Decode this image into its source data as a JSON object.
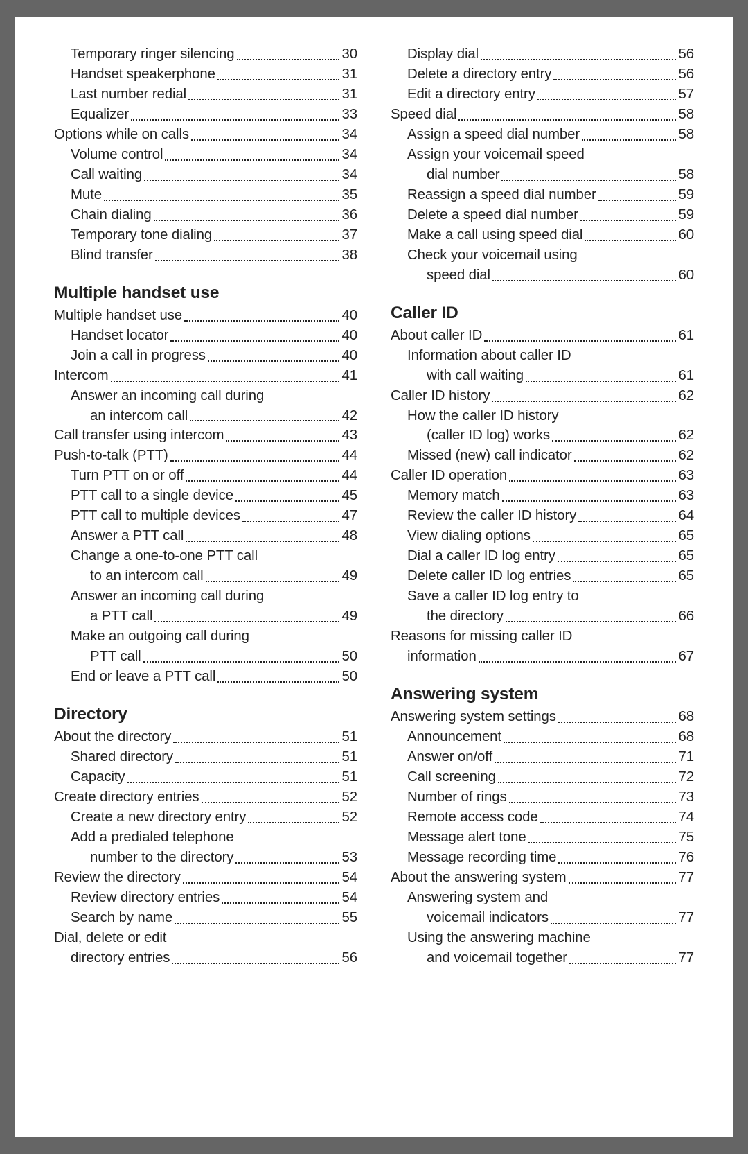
{
  "left_column": [
    {
      "type": "item",
      "level": 1,
      "label": "Temporary ringer silencing",
      "page": "30"
    },
    {
      "type": "item",
      "level": 1,
      "label": "Handset speakerphone",
      "page": "31"
    },
    {
      "type": "item",
      "level": 1,
      "label": "Last number redial",
      "page": "31"
    },
    {
      "type": "item",
      "level": 1,
      "label": "Equalizer",
      "page": "33"
    },
    {
      "type": "item",
      "level": 0,
      "label": "Options while on calls",
      "page": "34"
    },
    {
      "type": "item",
      "level": 1,
      "label": "Volume control",
      "page": "34"
    },
    {
      "type": "item",
      "level": 1,
      "label": "Call waiting",
      "page": "34"
    },
    {
      "type": "item",
      "level": 1,
      "label": "Mute",
      "page": "35"
    },
    {
      "type": "item",
      "level": 1,
      "label": "Chain dialing",
      "page": "36"
    },
    {
      "type": "item",
      "level": 1,
      "label": "Temporary tone dialing",
      "page": "37"
    },
    {
      "type": "item",
      "level": 1,
      "label": "Blind transfer",
      "page": "38"
    },
    {
      "type": "heading",
      "label": "Multiple handset use"
    },
    {
      "type": "item",
      "level": 0,
      "label": "Multiple handset use",
      "page": "40"
    },
    {
      "type": "item",
      "level": 1,
      "label": "Handset locator",
      "page": "40"
    },
    {
      "type": "item",
      "level": 1,
      "label": "Join a call in progress",
      "page": "40"
    },
    {
      "type": "item",
      "level": 0,
      "label": "Intercom",
      "page": "41"
    },
    {
      "type": "text",
      "level": 1,
      "label": "Answer an incoming call during"
    },
    {
      "type": "cont",
      "label": "an intercom call",
      "page": "42"
    },
    {
      "type": "item",
      "level": 0,
      "label": "Call transfer using intercom",
      "page": "43"
    },
    {
      "type": "item",
      "level": 0,
      "label": "Push-to-talk (PTT)",
      "page": "44"
    },
    {
      "type": "item",
      "level": 1,
      "label": "Turn PTT on or off",
      "page": "44"
    },
    {
      "type": "item",
      "level": 1,
      "label": "PTT call to a single device",
      "page": "45"
    },
    {
      "type": "item",
      "level": 1,
      "label": "PTT call to multiple devices",
      "page": "47"
    },
    {
      "type": "item",
      "level": 1,
      "label": "Answer a PTT call",
      "page": "48"
    },
    {
      "type": "text",
      "level": 1,
      "label": "Change a one-to-one PTT call"
    },
    {
      "type": "cont",
      "label": "to an intercom call",
      "page": "49"
    },
    {
      "type": "text",
      "level": 1,
      "label": "Answer an incoming call during"
    },
    {
      "type": "cont",
      "label": "a PTT call",
      "page": "49"
    },
    {
      "type": "text",
      "level": 1,
      "label": "Make an outgoing call during"
    },
    {
      "type": "cont",
      "label": "PTT call",
      "page": "50"
    },
    {
      "type": "item",
      "level": 1,
      "label": "End or leave a PTT call",
      "page": "50"
    },
    {
      "type": "heading",
      "label": "Directory"
    },
    {
      "type": "item",
      "level": 0,
      "label": "About the directory",
      "page": "51"
    },
    {
      "type": "item",
      "level": 1,
      "label": "Shared directory",
      "page": "51"
    },
    {
      "type": "item",
      "level": 1,
      "label": "Capacity",
      "page": "51"
    },
    {
      "type": "item",
      "level": 0,
      "label": "Create directory entries",
      "page": "52"
    },
    {
      "type": "item",
      "level": 1,
      "label": "Create a new directory entry",
      "page": "52"
    },
    {
      "type": "text",
      "level": 1,
      "label": "Add a predialed telephone"
    },
    {
      "type": "cont",
      "label": "number to the directory",
      "page": "53"
    },
    {
      "type": "item",
      "level": 0,
      "label": "Review the directory",
      "page": "54"
    },
    {
      "type": "item",
      "level": 1,
      "label": "Review directory entries",
      "page": "54"
    },
    {
      "type": "item",
      "level": 1,
      "label": "Search by name",
      "page": "55"
    },
    {
      "type": "text",
      "level": 0,
      "label": "Dial, delete or edit"
    },
    {
      "type": "item",
      "level": 1,
      "label": "directory entries",
      "page": "56"
    }
  ],
  "right_column": [
    {
      "type": "item",
      "level": 1,
      "label": "Display dial",
      "page": "56"
    },
    {
      "type": "item",
      "level": 1,
      "label": "Delete a directory entry",
      "page": "56"
    },
    {
      "type": "item",
      "level": 1,
      "label": "Edit a directory entry",
      "page": "57"
    },
    {
      "type": "item",
      "level": 0,
      "label": "Speed dial",
      "page": "58"
    },
    {
      "type": "item",
      "level": 1,
      "label": "Assign a speed dial number",
      "page": "58"
    },
    {
      "type": "text",
      "level": 1,
      "label": "Assign your voicemail speed"
    },
    {
      "type": "cont",
      "label": "dial number",
      "page": "58"
    },
    {
      "type": "item",
      "level": 1,
      "label": "Reassign a speed dial number",
      "page": "59"
    },
    {
      "type": "item",
      "level": 1,
      "label": "Delete a speed dial number",
      "page": "59"
    },
    {
      "type": "item",
      "level": 1,
      "label": "Make a call using speed dial",
      "page": "60"
    },
    {
      "type": "text",
      "level": 1,
      "label": "Check your voicemail using"
    },
    {
      "type": "cont",
      "label": "speed dial",
      "page": "60"
    },
    {
      "type": "heading",
      "label": "Caller ID"
    },
    {
      "type": "item",
      "level": 0,
      "label": "About caller ID",
      "page": "61"
    },
    {
      "type": "text",
      "level": 1,
      "label": "Information about caller ID"
    },
    {
      "type": "cont",
      "label": "with call waiting",
      "page": "61"
    },
    {
      "type": "item",
      "level": 0,
      "label": "Caller ID history",
      "page": "62"
    },
    {
      "type": "text",
      "level": 1,
      "label": "How the caller ID history"
    },
    {
      "type": "cont",
      "label": "(caller ID log) works",
      "page": "62"
    },
    {
      "type": "item",
      "level": 1,
      "label": "Missed (new) call indicator",
      "page": "62"
    },
    {
      "type": "item",
      "level": 0,
      "label": "Caller ID operation",
      "page": "63"
    },
    {
      "type": "item",
      "level": 1,
      "label": "Memory match",
      "page": "63"
    },
    {
      "type": "item",
      "level": 1,
      "label": "Review the caller ID history",
      "page": "64"
    },
    {
      "type": "item",
      "level": 1,
      "label": "View dialing options",
      "page": "65"
    },
    {
      "type": "item",
      "level": 1,
      "label": "Dial a caller ID log entry",
      "page": "65"
    },
    {
      "type": "item",
      "level": 1,
      "label": "Delete caller ID log entries",
      "page": "65"
    },
    {
      "type": "text",
      "level": 1,
      "label": "Save a caller ID log entry to"
    },
    {
      "type": "cont",
      "label": "the directory",
      "page": "66"
    },
    {
      "type": "text",
      "level": 0,
      "label": "Reasons for missing caller ID"
    },
    {
      "type": "item",
      "level": 1,
      "label": "information",
      "page": "67"
    },
    {
      "type": "heading",
      "label": "Answering system"
    },
    {
      "type": "item",
      "level": 0,
      "label": "Answering system settings",
      "page": "68"
    },
    {
      "type": "item",
      "level": 1,
      "label": "Announcement",
      "page": "68"
    },
    {
      "type": "item",
      "level": 1,
      "label": "Answer on/off",
      "page": "71"
    },
    {
      "type": "item",
      "level": 1,
      "label": "Call screening",
      "page": "72"
    },
    {
      "type": "item",
      "level": 1,
      "label": "Number of rings",
      "page": "73"
    },
    {
      "type": "item",
      "level": 1,
      "label": "Remote access code",
      "page": "74"
    },
    {
      "type": "item",
      "level": 1,
      "label": "Message alert tone",
      "page": "75"
    },
    {
      "type": "item",
      "level": 1,
      "label": "Message recording time",
      "page": "76"
    },
    {
      "type": "item",
      "level": 0,
      "label": "About the answering system",
      "page": "77"
    },
    {
      "type": "text",
      "level": 1,
      "label": "Answering system and"
    },
    {
      "type": "cont",
      "label": "voicemail indicators",
      "page": "77"
    },
    {
      "type": "text",
      "level": 1,
      "label": "Using the answering machine"
    },
    {
      "type": "cont",
      "label": "and voicemail together",
      "page": "77"
    }
  ]
}
